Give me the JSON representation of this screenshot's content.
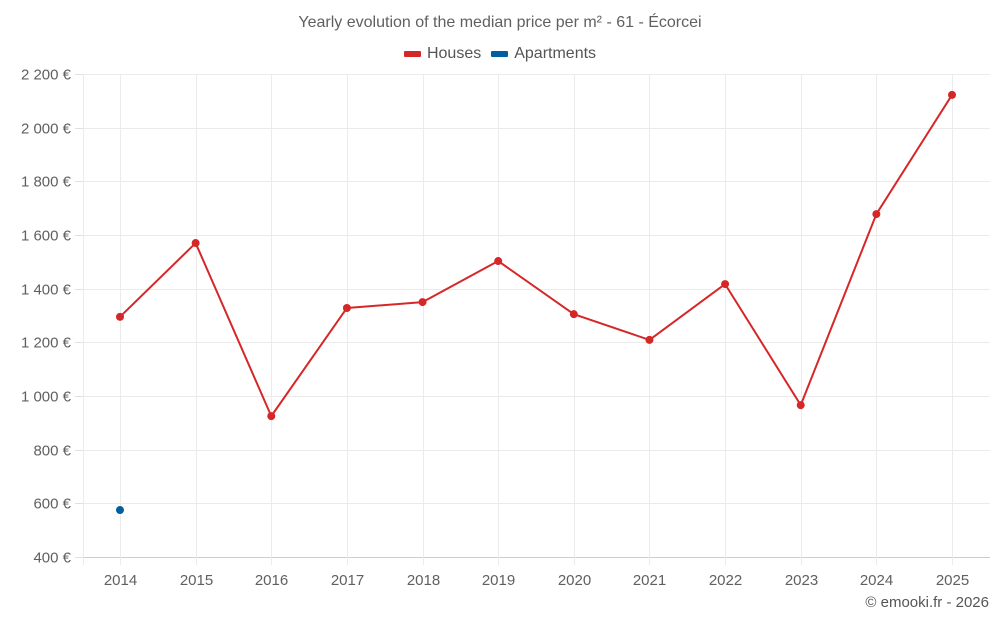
{
  "header": {
    "title": "Yearly evolution of the median price per m² - 61 - Écorcei"
  },
  "legend": {
    "items": [
      {
        "label": "Houses",
        "color": "#d62728"
      },
      {
        "label": "Apartments",
        "color": "#005f9e"
      }
    ]
  },
  "footer": {
    "credit": "© emooki.fr - 2026"
  },
  "chart_data": {
    "type": "line",
    "title": "Yearly evolution of the median price per m² - 61 - Écorcei",
    "xlabel": "",
    "ylabel": "",
    "categories": [
      "2014",
      "2015",
      "2016",
      "2017",
      "2018",
      "2019",
      "2020",
      "2021",
      "2022",
      "2023",
      "2024",
      "2025"
    ],
    "series": [
      {
        "name": "Houses",
        "color": "#d62728",
        "values": [
          1295,
          1570,
          925,
          1328,
          1350,
          1503,
          1305,
          1209,
          1417,
          966,
          1678,
          2122
        ]
      },
      {
        "name": "Apartments",
        "color": "#005f9e",
        "values": [
          575,
          null,
          null,
          null,
          null,
          null,
          null,
          null,
          null,
          null,
          null,
          null
        ]
      }
    ],
    "ylim": [
      400,
      2200
    ],
    "yticks": [
      400,
      600,
      800,
      1000,
      1200,
      1400,
      1600,
      1800,
      2000,
      2200
    ],
    "ytick_labels": [
      "400 €",
      "600 €",
      "800 €",
      "1 000 €",
      "1 200 €",
      "1 400 €",
      "1 600 €",
      "1 800 €",
      "2 000 €",
      "2 200 €"
    ],
    "grid": true,
    "legend_position": "top"
  }
}
